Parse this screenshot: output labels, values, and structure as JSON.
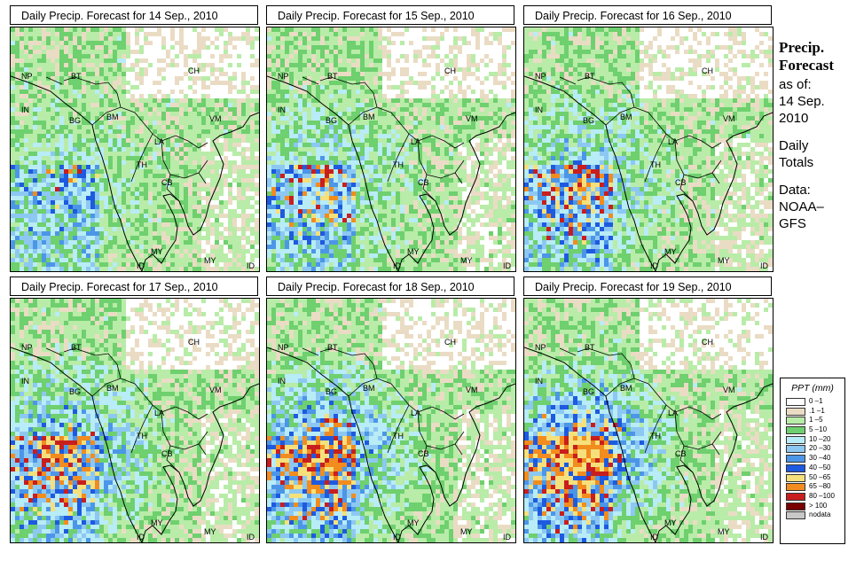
{
  "panels": [
    {
      "title": "Daily Precip. Forecast for  14 Sep., 2010"
    },
    {
      "title": "Daily Precip. Forecast for  15 Sep., 2010"
    },
    {
      "title": "Daily Precip. Forecast for  16 Sep., 2010"
    },
    {
      "title": "Daily Precip. Forecast for  17 Sep., 2010"
    },
    {
      "title": "Daily Precip. Forecast for  18 Sep., 2010"
    },
    {
      "title": "Daily Precip. Forecast for  19 Sep., 2010"
    }
  ],
  "country_labels": [
    "NP",
    "BT",
    "IN",
    "BG",
    "BM",
    "CH",
    "VM",
    "LA",
    "TH",
    "CB",
    "MY",
    "ID",
    "MY",
    "ID"
  ],
  "sidebar": {
    "heading_1": "Precip.",
    "heading_2": "Forecast",
    "as_of_label": "as of:",
    "date_1": "14 Sep.",
    "date_2": "2010",
    "totals_1": "Daily",
    "totals_2": "Totals",
    "data_1": "Data:",
    "data_2": "NOAA–",
    "data_3": "GFS"
  },
  "legend": {
    "title": "PPT (mm)",
    "items": [
      {
        "label": "0 –1",
        "color": "#ffffff"
      },
      {
        "label": ".1 –1",
        "color": "#eadcc4"
      },
      {
        "label": "1 –5",
        "color": "#b8eca8"
      },
      {
        "label": "5 –10",
        "color": "#6ed06e"
      },
      {
        "label": "10 –20",
        "color": "#b8ecf6"
      },
      {
        "label": "20 –30",
        "color": "#8cc8f2"
      },
      {
        "label": "30 –40",
        "color": "#4c96e8"
      },
      {
        "label": "40 –50",
        "color": "#1e5ae0"
      },
      {
        "label": "50 –65",
        "color": "#f5e07c"
      },
      {
        "label": "65 –80",
        "color": "#f28c1e"
      },
      {
        "label": "80 –100",
        "color": "#c81e1e"
      },
      {
        "label": "> 100",
        "color": "#780000"
      },
      {
        "label": "nodata",
        "color": "#c8c8c8"
      }
    ]
  }
}
